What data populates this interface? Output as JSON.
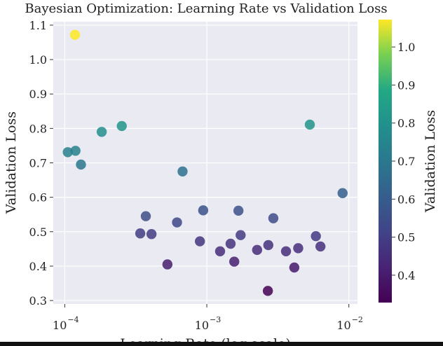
{
  "chart_data": {
    "type": "scatter",
    "title": "Bayesian Optimization: Learning Rate vs Validation Loss",
    "xlabel": "Learning Rate (log scale)",
    "ylabel": "Validation Loss",
    "x_scale": "log",
    "xlim": [
      8.3e-05,
      0.0115
    ],
    "ylim": [
      0.29,
      1.11
    ],
    "x_ticks": [
      {
        "value": 0.0001,
        "base": "10",
        "exp": "−4"
      },
      {
        "value": 0.001,
        "base": "10",
        "exp": "−3"
      },
      {
        "value": 0.01,
        "base": "10",
        "exp": "−2"
      }
    ],
    "y_ticks": [
      "0.3",
      "0.4",
      "0.5",
      "0.6",
      "0.7",
      "0.8",
      "0.9",
      "1.0",
      "1.1"
    ],
    "grid": true,
    "colorbar": {
      "label": "Validation Loss",
      "range": [
        0.328,
        1.072
      ],
      "ticks": [
        "0.4",
        "0.5",
        "0.6",
        "0.7",
        "0.8",
        "0.9",
        "1.0"
      ],
      "colormap": "viridis"
    },
    "colors": {
      "plot_background": "#eaeaf2",
      "grid": "#ffffff"
    },
    "points": [
      {
        "x": 0.000118,
        "y": 1.072
      },
      {
        "x": 0.000105,
        "y": 0.731
      },
      {
        "x": 0.000119,
        "y": 0.735
      },
      {
        "x": 0.00013,
        "y": 0.695
      },
      {
        "x": 0.000182,
        "y": 0.79
      },
      {
        "x": 0.000252,
        "y": 0.807
      },
      {
        "x": 0.00034,
        "y": 0.495
      },
      {
        "x": 0.000372,
        "y": 0.545
      },
      {
        "x": 0.000408,
        "y": 0.493
      },
      {
        "x": 0.000528,
        "y": 0.405
      },
      {
        "x": 0.000617,
        "y": 0.527
      },
      {
        "x": 0.000675,
        "y": 0.675
      },
      {
        "x": 0.000894,
        "y": 0.472
      },
      {
        "x": 0.000943,
        "y": 0.562
      },
      {
        "x": 0.00124,
        "y": 0.443
      },
      {
        "x": 0.00147,
        "y": 0.465
      },
      {
        "x": 0.00156,
        "y": 0.413
      },
      {
        "x": 0.00167,
        "y": 0.561
      },
      {
        "x": 0.00173,
        "y": 0.49
      },
      {
        "x": 0.00226,
        "y": 0.447
      },
      {
        "x": 0.00269,
        "y": 0.328
      },
      {
        "x": 0.00271,
        "y": 0.461
      },
      {
        "x": 0.00294,
        "y": 0.539
      },
      {
        "x": 0.00361,
        "y": 0.443
      },
      {
        "x": 0.00413,
        "y": 0.396
      },
      {
        "x": 0.0044,
        "y": 0.452
      },
      {
        "x": 0.00531,
        "y": 0.811
      },
      {
        "x": 0.00586,
        "y": 0.487
      },
      {
        "x": 0.00631,
        "y": 0.457
      },
      {
        "x": 0.00903,
        "y": 0.612
      }
    ]
  }
}
